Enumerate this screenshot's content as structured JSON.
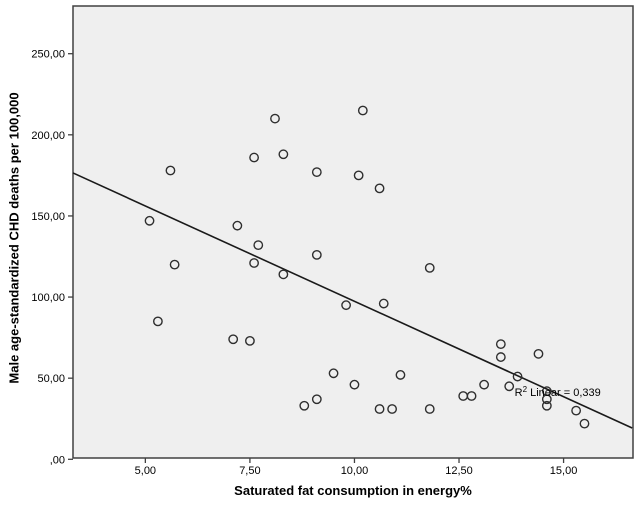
{
  "chart_data": {
    "type": "scatter",
    "title": "",
    "xlabel": "Saturated fat consumption in energy%",
    "ylabel": "Male age-standardized CHD deaths per 100,000",
    "x_domain": [
      3.27,
      16.66
    ],
    "y_domain": [
      0.8,
      279.4
    ],
    "grid": "off",
    "legend": "none",
    "x_ticks": [
      {
        "value": 5,
        "label": "5,00"
      },
      {
        "value": 7.5,
        "label": "7,50"
      },
      {
        "value": 10,
        "label": "10,00"
      },
      {
        "value": 12.5,
        "label": "12,50"
      },
      {
        "value": 15,
        "label": "15,00"
      }
    ],
    "y_ticks": [
      {
        "value": 0,
        "label": ",00"
      },
      {
        "value": 50,
        "label": "50,00"
      },
      {
        "value": 100,
        "label": "100,00"
      },
      {
        "value": 150,
        "label": "150,00"
      },
      {
        "value": 200,
        "label": "200,00"
      },
      {
        "value": 250,
        "label": "250,00"
      }
    ],
    "points": [
      [
        5.1,
        147
      ],
      [
        5.3,
        85
      ],
      [
        5.6,
        178
      ],
      [
        5.7,
        120
      ],
      [
        7.1,
        74
      ],
      [
        7.2,
        144
      ],
      [
        7.5,
        73
      ],
      [
        7.6,
        186
      ],
      [
        7.6,
        121
      ],
      [
        7.7,
        132
      ],
      [
        8.1,
        210
      ],
      [
        8.3,
        188
      ],
      [
        8.3,
        114
      ],
      [
        8.8,
        33
      ],
      [
        9.1,
        177
      ],
      [
        9.1,
        126
      ],
      [
        9.1,
        37
      ],
      [
        9.5,
        53
      ],
      [
        9.8,
        95
      ],
      [
        10.0,
        46
      ],
      [
        10.1,
        175
      ],
      [
        10.2,
        215
      ],
      [
        10.6,
        167
      ],
      [
        10.6,
        31
      ],
      [
        10.7,
        96
      ],
      [
        10.9,
        31
      ],
      [
        11.1,
        52
      ],
      [
        11.8,
        118
      ],
      [
        11.8,
        31
      ],
      [
        12.6,
        39
      ],
      [
        12.8,
        39
      ],
      [
        13.1,
        46
      ],
      [
        13.5,
        71
      ],
      [
        13.5,
        63
      ],
      [
        13.7,
        45
      ],
      [
        13.9,
        51
      ],
      [
        14.4,
        65
      ],
      [
        14.6,
        42
      ],
      [
        14.6,
        37
      ],
      [
        14.6,
        33
      ],
      [
        15.3,
        30
      ],
      [
        15.5,
        22
      ]
    ],
    "regression_line": {
      "x1": 3.27,
      "y1": 176.5,
      "x2": 16.64,
      "y2": 19.3
    },
    "annotation": {
      "base": "R",
      "sup": "2",
      "rest": " Linear = 0,339",
      "x": 13.83,
      "y": 41.5
    },
    "colors": {
      "plot_background": "#efefef",
      "border": "#404040",
      "marker": "#2e2e2e",
      "line": "#1a1a1a",
      "text": "#000000"
    }
  }
}
